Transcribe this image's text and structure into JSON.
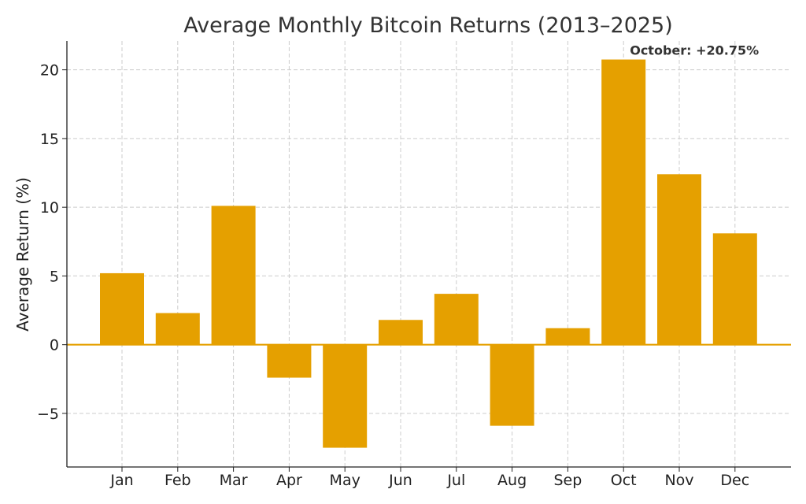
{
  "chart_data": {
    "type": "bar",
    "title": "Average Monthly Bitcoin Returns (2013–2025)",
    "xlabel": "",
    "ylabel": "Average Return (%)",
    "categories": [
      "Jan",
      "Feb",
      "Mar",
      "Apr",
      "May",
      "Jun",
      "Jul",
      "Aug",
      "Sep",
      "Oct",
      "Nov",
      "Dec"
    ],
    "values": [
      5.2,
      2.3,
      10.1,
      -2.4,
      -7.5,
      1.8,
      3.7,
      -5.9,
      1.2,
      20.75,
      12.4,
      8.1
    ],
    "ylim": [
      -8.9,
      22.1
    ],
    "yticks": [
      -5,
      0,
      5,
      10,
      15,
      20
    ],
    "ytick_labels": [
      "−5",
      "0",
      "5",
      "10",
      "15",
      "20"
    ],
    "grid": true,
    "bar_color": "#E5A000",
    "zero_line_color": "#E5A000",
    "annotation": {
      "text": "October: +20.75%",
      "category": "Oct",
      "value": 20.75
    }
  }
}
